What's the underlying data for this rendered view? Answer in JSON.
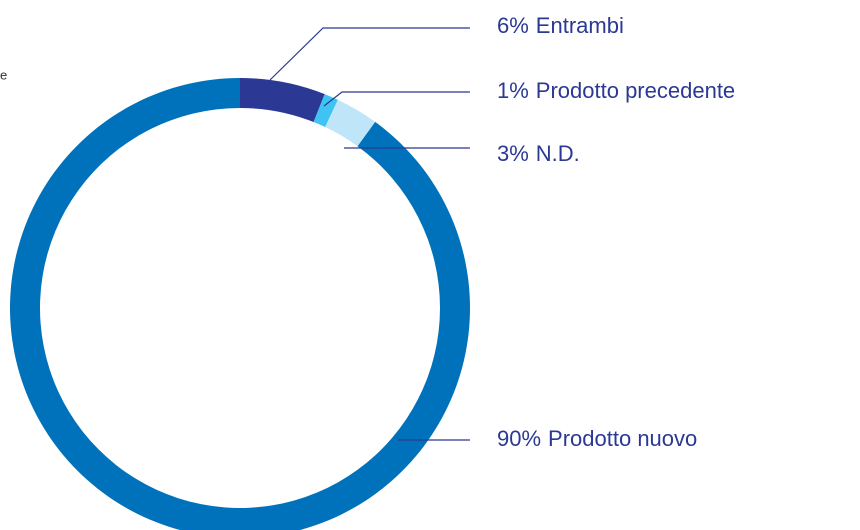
{
  "chart_data": {
    "type": "donut",
    "categories": [
      "Entrambi",
      "Prodotto precedente",
      "N.D.",
      "Prodotto nuovo"
    ],
    "values": [
      6,
      1,
      3,
      90
    ],
    "value_labels": [
      "6%",
      "1%",
      "3%",
      "90%"
    ],
    "colors": [
      "#2b3894",
      "#3fc3f2",
      "#bfe6f8",
      "#0072bb"
    ],
    "annotations": [
      "e"
    ]
  }
}
